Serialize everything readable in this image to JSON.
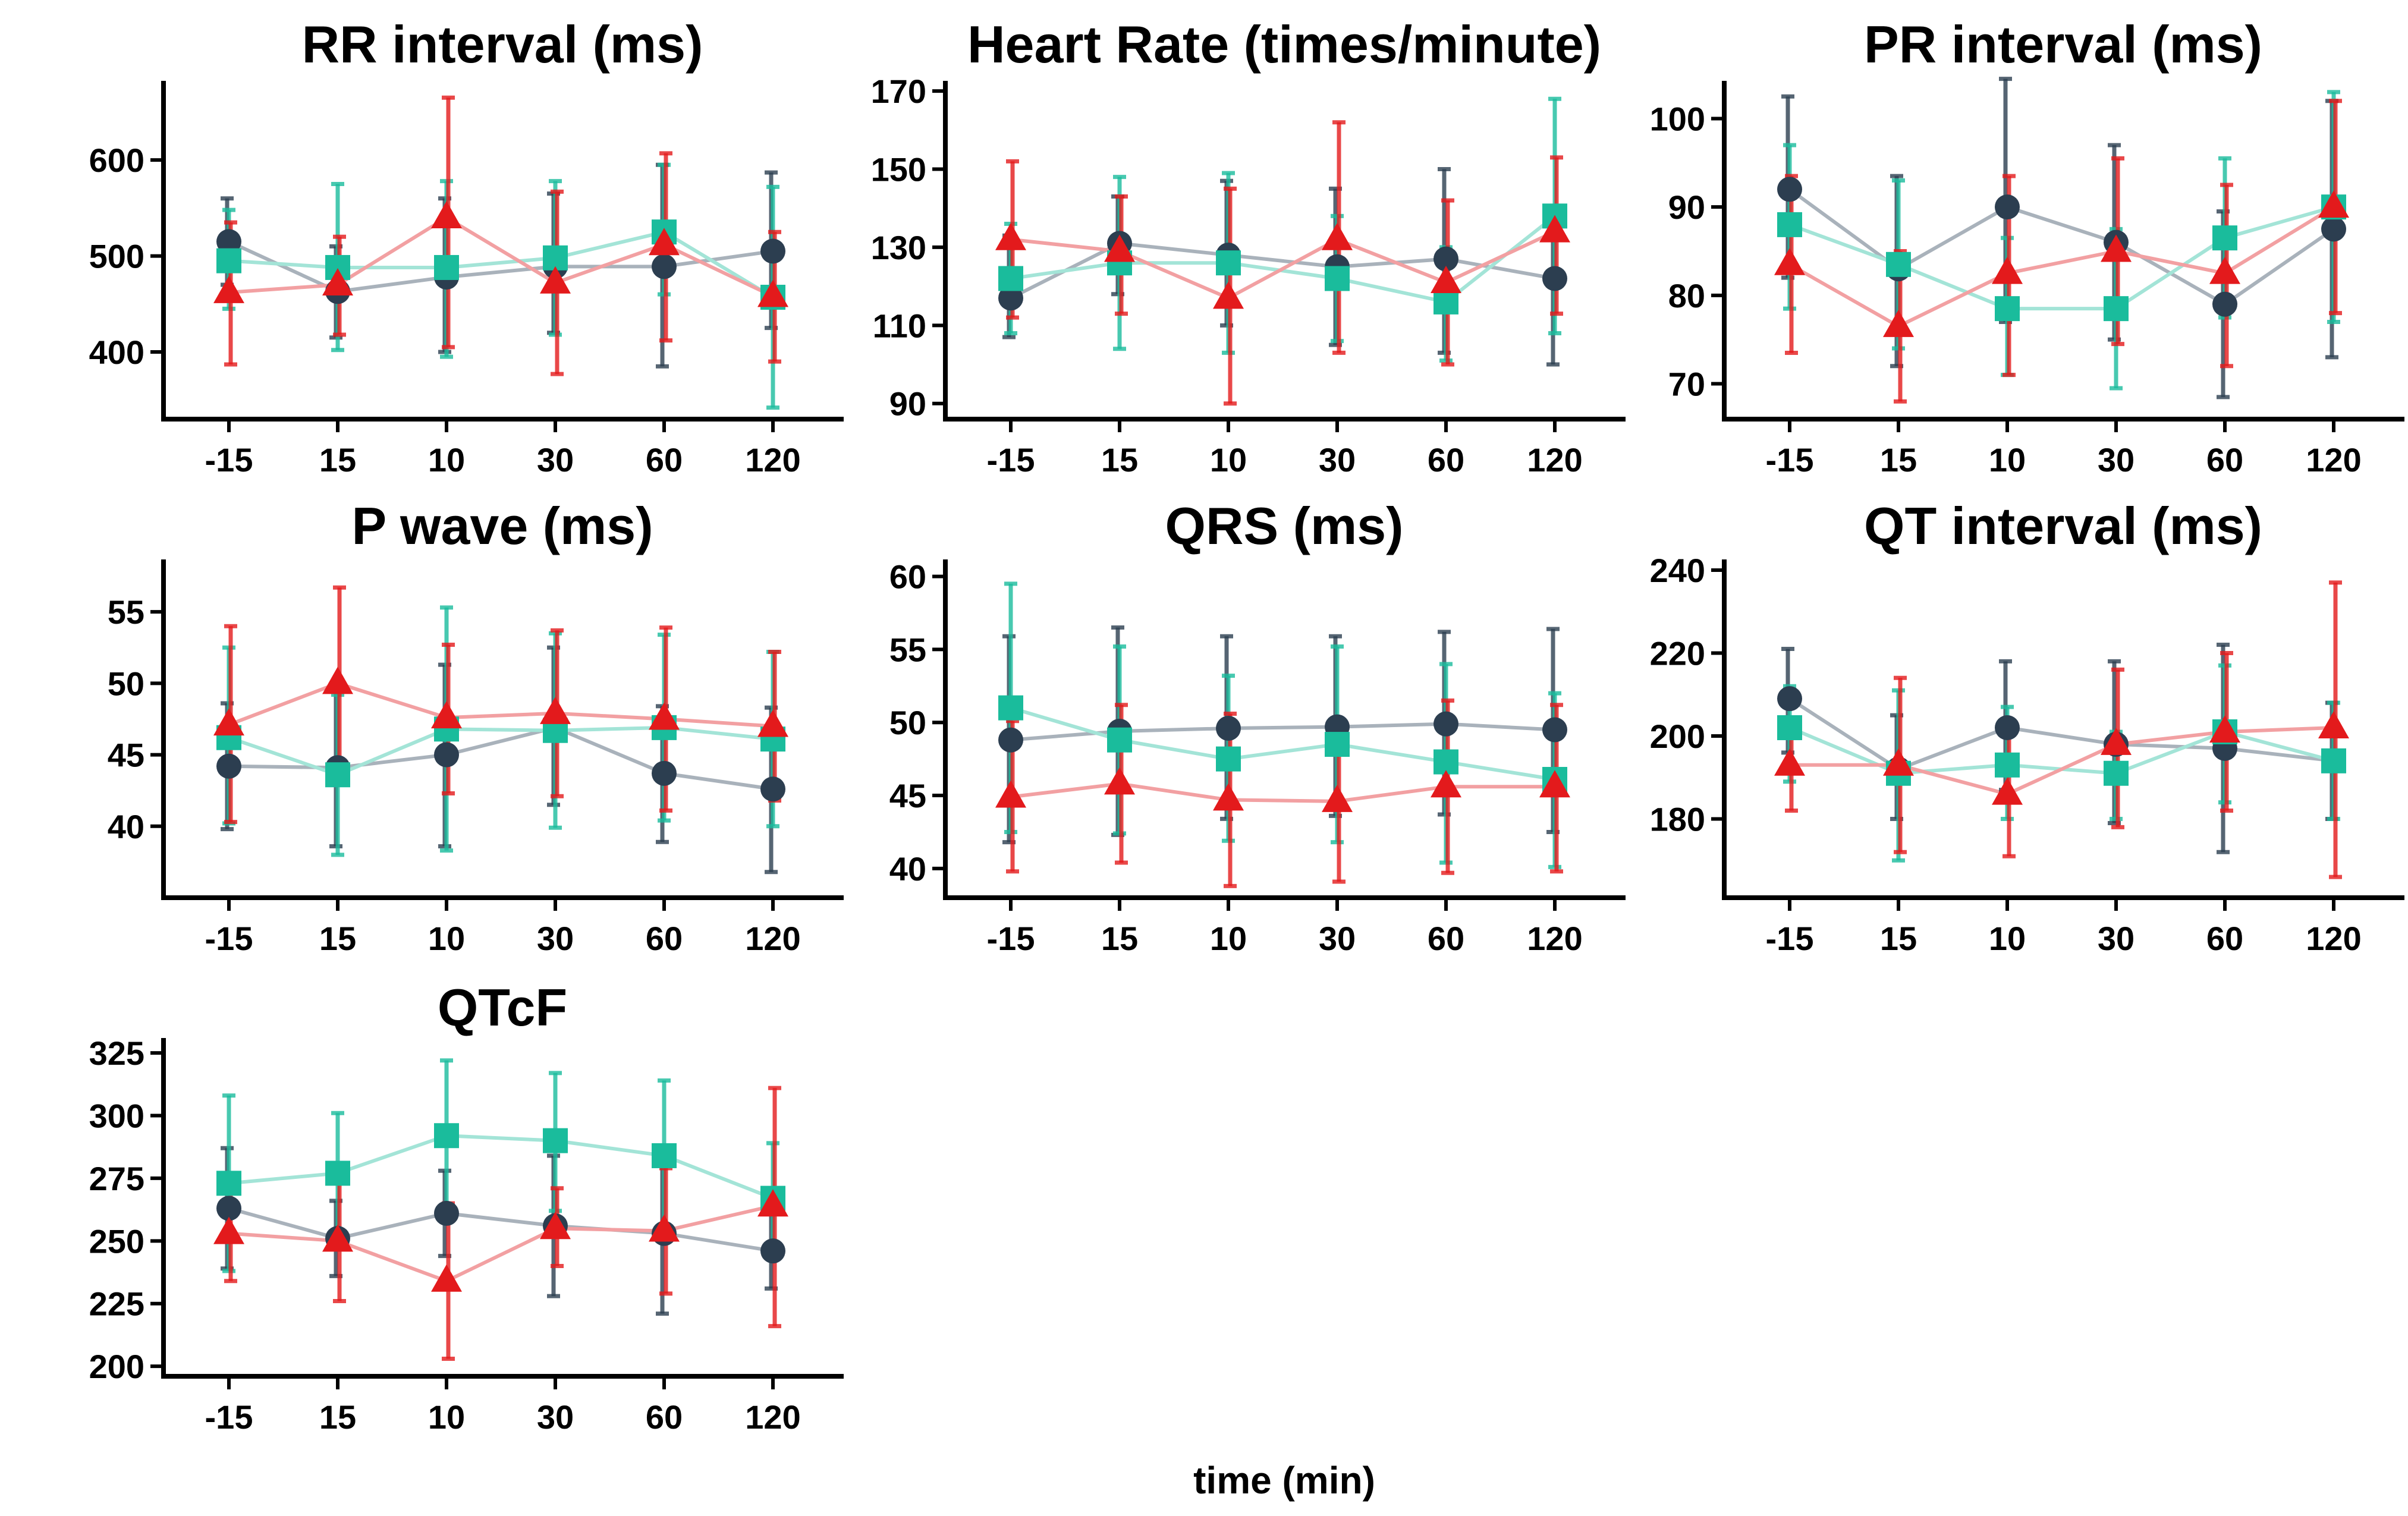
{
  "global_xlabel": "time (min)",
  "colors": {
    "series_1": "#2c3e50",
    "series_2": "#1abc9c",
    "series_3": "#e31a1c",
    "series_1_line": "#a9b2bb",
    "series_2_line": "#a3e4d7",
    "series_3_line": "#f2a0a2"
  },
  "markers": {
    "series_1": "circle",
    "series_2": "square",
    "series_3": "triangle"
  },
  "chart_data": [
    {
      "type": "line",
      "title": "RR interval (ms)",
      "xlabel": "",
      "ylabel": "",
      "categories": [
        "-15",
        "15",
        "10",
        "30",
        "60",
        "120"
      ],
      "ylim": [
        330,
        680
      ],
      "yticks": [
        400,
        500,
        600
      ],
      "grid": false,
      "series": [
        {
          "values": [
            515,
            463,
            478,
            489,
            489,
            505
          ],
          "err_low": [
            470,
            415,
            400,
            420,
            385,
            425
          ],
          "err_high": [
            560,
            510,
            560,
            565,
            595,
            587
          ]
        },
        {
          "values": [
            495,
            488,
            488,
            498,
            525,
            457
          ],
          "err_low": [
            445,
            402,
            395,
            418,
            460,
            342
          ],
          "err_high": [
            548,
            575,
            578,
            578,
            595,
            572
          ]
        },
        {
          "values": [
            462,
            470,
            540,
            472,
            512,
            458
          ],
          "err_low": [
            387,
            418,
            405,
            377,
            412,
            390
          ],
          "err_high": [
            535,
            520,
            665,
            567,
            607,
            525
          ]
        }
      ]
    },
    {
      "type": "line",
      "title": "Heart Rate (times/minute)",
      "xlabel": "",
      "ylabel": "",
      "categories": [
        "-15",
        "15",
        "10",
        "30",
        "60",
        "120"
      ],
      "ylim": [
        86,
        172
      ],
      "yticks": [
        90,
        110,
        130,
        150,
        170
      ],
      "grid": false,
      "series": [
        {
          "values": [
            117,
            131,
            128,
            125,
            127,
            122
          ],
          "err_low": [
            107,
            118,
            110,
            105,
            103,
            100
          ],
          "err_high": [
            133,
            143,
            147,
            145,
            150,
            137
          ]
        },
        {
          "values": [
            122,
            126,
            126,
            122,
            116,
            138
          ],
          "err_low": [
            108,
            104,
            103,
            106,
            101,
            108
          ],
          "err_high": [
            136,
            148,
            149,
            138,
            130,
            168
          ]
        },
        {
          "values": [
            132,
            129,
            117,
            132,
            121,
            134
          ],
          "err_low": [
            112,
            113,
            90,
            103,
            100,
            113
          ],
          "err_high": [
            152,
            143,
            145,
            162,
            142,
            153
          ]
        }
      ]
    },
    {
      "type": "line",
      "title": "PR interval (ms)",
      "xlabel": "",
      "ylabel": "",
      "categories": [
        "-15",
        "15",
        "10",
        "30",
        "60",
        "120"
      ],
      "ylim": [
        66,
        104
      ],
      "yticks": [
        70,
        80,
        90,
        100
      ],
      "grid": false,
      "series": [
        {
          "values": [
            92,
            83,
            90,
            86,
            79,
            87.5
          ],
          "err_low": [
            82,
            72,
            77,
            75,
            68.5,
            73
          ],
          "err_high": [
            102.5,
            93.5,
            104.5,
            97,
            89.5,
            102
          ]
        },
        {
          "values": [
            88,
            83.5,
            78.5,
            78.5,
            86.5,
            90
          ],
          "err_low": [
            78.5,
            74,
            71,
            69.5,
            77.5,
            77
          ],
          "err_high": [
            97,
            93,
            86.5,
            87.5,
            95.5,
            103
          ]
        },
        {
          "values": [
            83.5,
            76.5,
            82.5,
            85,
            82.5,
            90
          ],
          "err_low": [
            73.5,
            68,
            71,
            74.5,
            72,
            78
          ],
          "err_high": [
            93.5,
            85,
            93.5,
            95.5,
            92.5,
            102
          ]
        }
      ]
    },
    {
      "type": "line",
      "title": "P wave (ms)",
      "xlabel": "",
      "ylabel": "",
      "categories": [
        "-15",
        "15",
        "10",
        "30",
        "60",
        "120"
      ],
      "ylim": [
        35,
        58.5
      ],
      "yticks": [
        40,
        45,
        50,
        55
      ],
      "grid": false,
      "series": [
        {
          "values": [
            44.2,
            44.1,
            45,
            46.9,
            43.7,
            42.6
          ],
          "err_low": [
            39.8,
            38.6,
            38.6,
            41.5,
            38.9,
            36.8
          ],
          "err_high": [
            48.6,
            49.6,
            51.3,
            52.5,
            48.4,
            48.3
          ]
        },
        {
          "values": [
            46.2,
            43.6,
            46.8,
            46.7,
            46.9,
            46.1
          ],
          "err_low": [
            40.2,
            38,
            38.3,
            39.9,
            40.4,
            40
          ],
          "err_high": [
            52.5,
            49.2,
            55.3,
            53.5,
            53.4,
            52.2
          ]
        },
        {
          "values": [
            47.1,
            50,
            47.6,
            47.9,
            47.5,
            47
          ],
          "err_low": [
            40.3,
            43.3,
            42.3,
            42.1,
            41.1,
            41.8
          ],
          "err_high": [
            54,
            56.7,
            52.7,
            53.7,
            53.9,
            52.2
          ]
        }
      ]
    },
    {
      "type": "line",
      "title": "QRS (ms)",
      "xlabel": "",
      "ylabel": "",
      "categories": [
        "-15",
        "15",
        "10",
        "30",
        "60",
        "120"
      ],
      "ylim": [
        38,
        61
      ],
      "yticks": [
        40,
        45,
        50,
        55,
        60
      ],
      "grid": false,
      "series": [
        {
          "values": [
            48.8,
            49.4,
            49.6,
            49.7,
            49.9,
            49.5
          ],
          "err_low": [
            41.8,
            42.3,
            43.4,
            43.6,
            43.7,
            42.5
          ],
          "err_high": [
            55.9,
            56.5,
            55.9,
            55.9,
            56.2,
            56.4
          ]
        },
        {
          "values": [
            51,
            48.8,
            47.5,
            48.5,
            47.3,
            46.1
          ],
          "err_low": [
            42.5,
            42.4,
            41.9,
            41.8,
            40.4,
            40.1
          ],
          "err_high": [
            59.5,
            55.2,
            53.2,
            55.2,
            54,
            52
          ]
        },
        {
          "values": [
            44.9,
            45.8,
            44.7,
            44.6,
            45.6,
            45.6
          ],
          "err_low": [
            39.8,
            40.4,
            38.8,
            39.1,
            39.7,
            39.8
          ],
          "err_high": [
            50.1,
            51.2,
            50.6,
            50.1,
            51.5,
            51.2
          ]
        }
      ]
    },
    {
      "type": "line",
      "title": "QT interval (ms)",
      "xlabel": "",
      "ylabel": "",
      "categories": [
        "-15",
        "15",
        "10",
        "30",
        "60",
        "120"
      ],
      "ylim": [
        161,
        242
      ],
      "yticks": [
        180,
        200,
        220,
        240
      ],
      "grid": false,
      "series": [
        {
          "values": [
            209,
            192,
            202,
            198,
            197,
            194
          ],
          "err_low": [
            196,
            180,
            187,
            179,
            172,
            180
          ],
          "err_high": [
            221,
            205,
            218,
            218,
            222,
            208
          ]
        },
        {
          "values": [
            202,
            191,
            193,
            191,
            201,
            194
          ],
          "err_low": [
            189,
            170,
            180,
            180,
            184,
            180
          ],
          "err_high": [
            212,
            211,
            207,
            201,
            217,
            208
          ]
        },
        {
          "values": [
            193,
            193,
            186,
            198,
            201,
            202
          ],
          "err_low": [
            182,
            172,
            171,
            178,
            182,
            166
          ],
          "err_high": [
            204,
            214,
            201,
            216,
            220,
            237
          ]
        }
      ]
    },
    {
      "type": "line",
      "title": "QTcF",
      "xlabel": "",
      "ylabel": "",
      "categories": [
        "-15",
        "15",
        "10",
        "30",
        "60",
        "120"
      ],
      "ylim": [
        196,
        330
      ],
      "yticks": [
        200,
        225,
        250,
        275,
        300,
        325
      ],
      "grid": false,
      "series": [
        {
          "values": [
            263,
            251,
            261,
            256,
            253,
            246
          ],
          "err_low": [
            239,
            236,
            244,
            228,
            221,
            231
          ],
          "err_high": [
            287,
            266,
            278,
            284,
            285,
            262
          ]
        },
        {
          "values": [
            273,
            277,
            292,
            290,
            284,
            267
          ],
          "err_low": [
            238,
            252,
            262,
            262,
            254,
            246
          ],
          "err_high": [
            308,
            301,
            322,
            317,
            314,
            289
          ]
        },
        {
          "values": [
            253,
            250,
            234,
            255,
            254,
            264
          ],
          "err_low": [
            234,
            226,
            203,
            240,
            229,
            216
          ],
          "err_high": [
            272,
            274,
            265,
            271,
            279,
            311
          ]
        }
      ]
    }
  ]
}
